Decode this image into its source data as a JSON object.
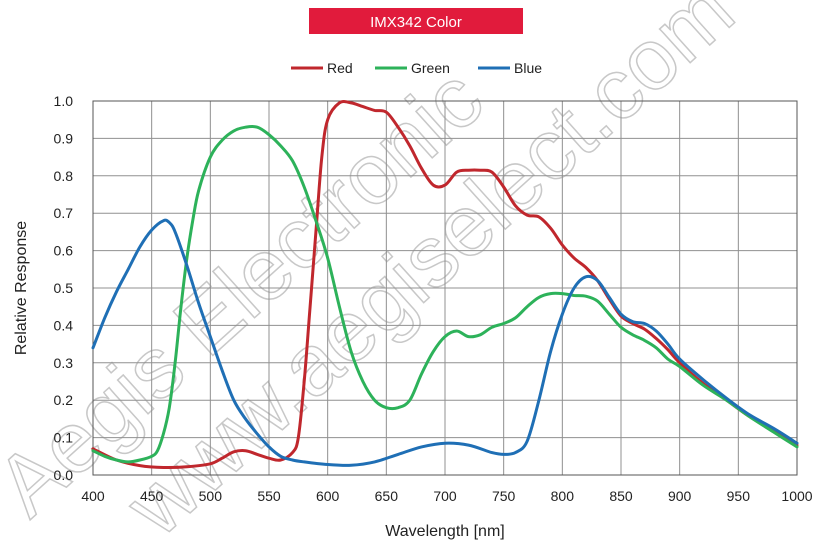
{
  "chart_data": {
    "type": "line",
    "title": "IMX342 Color",
    "xlabel": "Wavelength [nm]",
    "ylabel": "Relative Response",
    "xlim": [
      400,
      1000
    ],
    "ylim": [
      0,
      1.0
    ],
    "xticks": [
      400,
      450,
      500,
      550,
      600,
      650,
      700,
      750,
      800,
      850,
      900,
      950,
      1000
    ],
    "yticks": [
      0.0,
      0.1,
      0.2,
      0.3,
      0.4,
      0.5,
      0.6,
      0.7,
      0.8,
      0.9,
      1.0
    ],
    "ytick_labels": [
      "0.0",
      "0.1",
      "0.2",
      "0.3",
      "0.4",
      "0.5",
      "0.6",
      "0.7",
      "0.8",
      "0.9",
      "1.0"
    ],
    "grid": true,
    "legend": "top-center",
    "series": [
      {
        "name": "Red",
        "color": "#c0272d",
        "points": [
          [
            400,
            0.07
          ],
          [
            420,
            0.04
          ],
          [
            440,
            0.025
          ],
          [
            460,
            0.02
          ],
          [
            480,
            0.022
          ],
          [
            500,
            0.03
          ],
          [
            510,
            0.045
          ],
          [
            520,
            0.062
          ],
          [
            530,
            0.065
          ],
          [
            540,
            0.055
          ],
          [
            550,
            0.045
          ],
          [
            560,
            0.04
          ],
          [
            570,
            0.06
          ],
          [
            575,
            0.1
          ],
          [
            580,
            0.25
          ],
          [
            585,
            0.45
          ],
          [
            590,
            0.65
          ],
          [
            595,
            0.85
          ],
          [
            600,
            0.95
          ],
          [
            610,
            0.995
          ],
          [
            620,
            0.995
          ],
          [
            630,
            0.985
          ],
          [
            640,
            0.975
          ],
          [
            650,
            0.97
          ],
          [
            660,
            0.93
          ],
          [
            670,
            0.88
          ],
          [
            680,
            0.82
          ],
          [
            690,
            0.775
          ],
          [
            700,
            0.775
          ],
          [
            710,
            0.81
          ],
          [
            720,
            0.815
          ],
          [
            730,
            0.815
          ],
          [
            740,
            0.81
          ],
          [
            750,
            0.77
          ],
          [
            760,
            0.72
          ],
          [
            770,
            0.695
          ],
          [
            780,
            0.69
          ],
          [
            790,
            0.66
          ],
          [
            800,
            0.615
          ],
          [
            810,
            0.58
          ],
          [
            820,
            0.555
          ],
          [
            830,
            0.52
          ],
          [
            840,
            0.47
          ],
          [
            850,
            0.425
          ],
          [
            860,
            0.405
          ],
          [
            870,
            0.39
          ],
          [
            880,
            0.365
          ],
          [
            890,
            0.335
          ],
          [
            900,
            0.3
          ],
          [
            920,
            0.245
          ],
          [
            940,
            0.2
          ],
          [
            960,
            0.155
          ],
          [
            980,
            0.12
          ],
          [
            1000,
            0.08
          ]
        ]
      },
      {
        "name": "Green",
        "color": "#2db25a",
        "points": [
          [
            400,
            0.065
          ],
          [
            410,
            0.05
          ],
          [
            420,
            0.04
          ],
          [
            430,
            0.035
          ],
          [
            440,
            0.04
          ],
          [
            450,
            0.05
          ],
          [
            455,
            0.065
          ],
          [
            460,
            0.11
          ],
          [
            465,
            0.18
          ],
          [
            470,
            0.3
          ],
          [
            475,
            0.45
          ],
          [
            480,
            0.58
          ],
          [
            485,
            0.68
          ],
          [
            490,
            0.76
          ],
          [
            500,
            0.85
          ],
          [
            510,
            0.895
          ],
          [
            520,
            0.92
          ],
          [
            530,
            0.93
          ],
          [
            540,
            0.93
          ],
          [
            550,
            0.91
          ],
          [
            560,
            0.88
          ],
          [
            570,
            0.84
          ],
          [
            580,
            0.77
          ],
          [
            590,
            0.68
          ],
          [
            600,
            0.58
          ],
          [
            610,
            0.45
          ],
          [
            620,
            0.33
          ],
          [
            630,
            0.25
          ],
          [
            640,
            0.2
          ],
          [
            650,
            0.18
          ],
          [
            660,
            0.18
          ],
          [
            670,
            0.2
          ],
          [
            680,
            0.27
          ],
          [
            690,
            0.33
          ],
          [
            700,
            0.37
          ],
          [
            710,
            0.385
          ],
          [
            720,
            0.37
          ],
          [
            730,
            0.375
          ],
          [
            740,
            0.395
          ],
          [
            750,
            0.405
          ],
          [
            760,
            0.42
          ],
          [
            770,
            0.45
          ],
          [
            780,
            0.475
          ],
          [
            790,
            0.485
          ],
          [
            800,
            0.485
          ],
          [
            810,
            0.48
          ],
          [
            820,
            0.478
          ],
          [
            830,
            0.465
          ],
          [
            840,
            0.43
          ],
          [
            850,
            0.395
          ],
          [
            860,
            0.375
          ],
          [
            870,
            0.36
          ],
          [
            880,
            0.34
          ],
          [
            890,
            0.31
          ],
          [
            900,
            0.29
          ],
          [
            920,
            0.24
          ],
          [
            940,
            0.2
          ],
          [
            960,
            0.155
          ],
          [
            980,
            0.115
          ],
          [
            1000,
            0.075
          ]
        ]
      },
      {
        "name": "Blue",
        "color": "#1f6fb5",
        "points": [
          [
            400,
            0.34
          ],
          [
            410,
            0.42
          ],
          [
            420,
            0.49
          ],
          [
            430,
            0.55
          ],
          [
            440,
            0.61
          ],
          [
            450,
            0.655
          ],
          [
            460,
            0.68
          ],
          [
            465,
            0.675
          ],
          [
            470,
            0.65
          ],
          [
            480,
            0.56
          ],
          [
            490,
            0.46
          ],
          [
            500,
            0.37
          ],
          [
            510,
            0.28
          ],
          [
            520,
            0.2
          ],
          [
            530,
            0.15
          ],
          [
            540,
            0.11
          ],
          [
            550,
            0.075
          ],
          [
            560,
            0.05
          ],
          [
            570,
            0.04
          ],
          [
            580,
            0.035
          ],
          [
            600,
            0.028
          ],
          [
            620,
            0.026
          ],
          [
            640,
            0.035
          ],
          [
            660,
            0.055
          ],
          [
            680,
            0.075
          ],
          [
            700,
            0.085
          ],
          [
            720,
            0.08
          ],
          [
            740,
            0.06
          ],
          [
            750,
            0.055
          ],
          [
            760,
            0.06
          ],
          [
            770,
            0.09
          ],
          [
            780,
            0.2
          ],
          [
            790,
            0.33
          ],
          [
            800,
            0.43
          ],
          [
            810,
            0.5
          ],
          [
            820,
            0.53
          ],
          [
            830,
            0.52
          ],
          [
            840,
            0.475
          ],
          [
            850,
            0.43
          ],
          [
            860,
            0.41
          ],
          [
            870,
            0.405
          ],
          [
            880,
            0.385
          ],
          [
            890,
            0.35
          ],
          [
            900,
            0.31
          ],
          [
            920,
            0.255
          ],
          [
            940,
            0.205
          ],
          [
            960,
            0.16
          ],
          [
            980,
            0.125
          ],
          [
            1000,
            0.085
          ]
        ]
      }
    ]
  },
  "watermark": {
    "line1": "Aegis Electronic",
    "line2": "www.aegiselect.com"
  },
  "colors": {
    "title_bg": "#e11b3c",
    "grid": "#909090",
    "axis": "#555555"
  }
}
